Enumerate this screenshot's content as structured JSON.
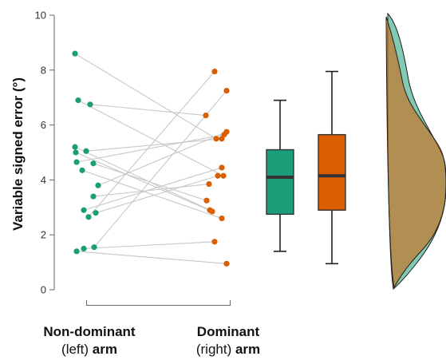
{
  "chart_data": {
    "type": "raincloud",
    "ylabel": "Variable signed error (°)",
    "ylim": [
      0,
      10
    ],
    "yticks": [
      "0",
      "2",
      "4",
      "6",
      "8",
      "10"
    ],
    "groups": [
      {
        "label_line1": "Non-dominant",
        "label_line2_normal": "(left) ",
        "label_line2_bold": "arm",
        "color": "#1b9e77",
        "box": {
          "whisker_low": 1.4,
          "q1": 2.75,
          "median": 4.1,
          "q3": 5.1,
          "whisker_high": 6.9
        }
      },
      {
        "label_line1": "Dominant",
        "label_line2_normal": "(right) ",
        "label_line2_bold": "arm",
        "color": "#d95f02",
        "box": {
          "whisker_low": 0.95,
          "q1": 2.9,
          "median": 4.15,
          "q3": 5.65,
          "whisker_high": 7.95
        }
      }
    ],
    "pairs": [
      [
        8.6,
        5.5
      ],
      [
        6.9,
        4.15
      ],
      [
        6.75,
        6.35
      ],
      [
        5.2,
        2.9
      ],
      [
        5.05,
        5.5
      ],
      [
        5.0,
        2.85
      ],
      [
        4.65,
        5.65
      ],
      [
        4.6,
        3.25
      ],
      [
        4.35,
        2.6
      ],
      [
        3.8,
        5.75
      ],
      [
        3.4,
        3.85
      ],
      [
        2.9,
        4.45
      ],
      [
        2.8,
        4.15
      ],
      [
        2.65,
        7.95
      ],
      [
        1.55,
        7.25
      ],
      [
        1.5,
        1.75
      ],
      [
        1.4,
        0.95
      ]
    ],
    "colors": {
      "connector": "#c8c8c8",
      "axis": "#666666"
    }
  }
}
